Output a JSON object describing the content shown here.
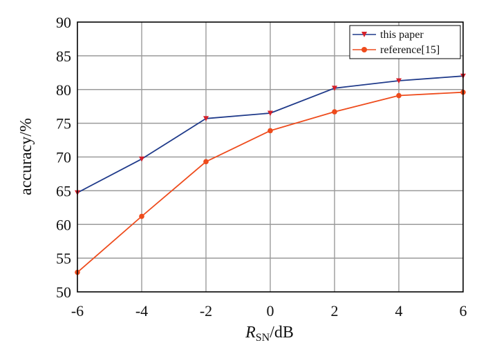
{
  "chart_data": {
    "type": "line",
    "x": [
      -6,
      -4,
      -2,
      0,
      2,
      4,
      6
    ],
    "x_ticks": [
      "-6",
      "-4",
      "-2",
      "0",
      "2",
      "4",
      "6"
    ],
    "y_ticks": [
      "50",
      "55",
      "60",
      "65",
      "70",
      "75",
      "80",
      "85",
      "90"
    ],
    "xlim": [
      -6,
      6
    ],
    "ylim": [
      50,
      90
    ],
    "xlabel_main": "R",
    "xlabel_sub": "SN",
    "xlabel_unit": "/dB",
    "ylabel": "accuracy/%",
    "grid": true,
    "legend_position": "top-right",
    "series": [
      {
        "name": "this paper",
        "color": "#1f3a8a",
        "marker": "triangle-down",
        "values": [
          64.7,
          69.7,
          75.7,
          76.5,
          80.2,
          81.3,
          82.0
        ]
      },
      {
        "name": "reference[15]",
        "color": "#ee4b1c",
        "marker": "circle",
        "values": [
          52.9,
          61.2,
          69.3,
          73.9,
          76.7,
          79.1,
          79.6
        ]
      }
    ]
  }
}
